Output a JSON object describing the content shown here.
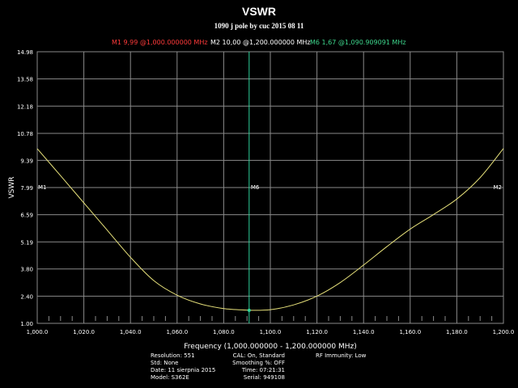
{
  "header": {
    "title": "VSWR",
    "subtitle": "1090 j pole by cuc 2015 08 11"
  },
  "markers": {
    "m1": {
      "text": "M1  9,99 @1,000.000000 MHz",
      "color": "#ff3a3a"
    },
    "m2": {
      "text": "M2  10,00 @1,200.000000 MHz",
      "color": "#ffffff"
    },
    "m6": {
      "text": "M6  1,67 @1,090.909091 MHz",
      "color": "#3dd68c"
    },
    "m1_tag": "M1",
    "m2_tag": "M2",
    "m6_tag": "M6"
  },
  "info": {
    "col1": [
      "Resolution: 551",
      "Std: None",
      "Date: 11 sierpnia 2015",
      "Model: S362E"
    ],
    "col2": [
      "CAL: On, Standard",
      "Smoothing %:  OFF",
      "Time: 07:21:31",
      "Serial: 949108"
    ],
    "col3": [
      "RF Immunity: Low"
    ]
  },
  "colors": {
    "trace": "#e6e07a",
    "grid": "#8a8a8a",
    "m6_line": "#2fd39a",
    "m1_tag": "#ff3a3a",
    "m2_tag": "#ffffff"
  },
  "chart_data": {
    "type": "line",
    "title": "VSWR",
    "subtitle": "1090 j pole by cuc 2015 08 11",
    "xlabel": "Frequency (1,000.000000 - 1,200.000000 MHz)",
    "ylabel": "VSWR",
    "xlim": [
      1000,
      1200
    ],
    "ylim": [
      1.0,
      14.98
    ],
    "grid": true,
    "x_ticks": [
      "1,000.0",
      "1,020.0",
      "1,040.0",
      "1,060.0",
      "1,080.0",
      "1,100.0",
      "1,120.0",
      "1,140.0",
      "1,160.0",
      "1,180.0",
      "1,200.0"
    ],
    "x_tick_values": [
      1000,
      1020,
      1040,
      1060,
      1080,
      1100,
      1120,
      1140,
      1160,
      1180,
      1200
    ],
    "y_ticks": [
      "14.98",
      "13.58",
      "12.18",
      "10.78",
      "9.39",
      "7.99",
      "6.59",
      "5.19",
      "3.80",
      "2.40",
      "1.00"
    ],
    "y_tick_values": [
      14.98,
      13.58,
      12.18,
      10.78,
      9.39,
      7.99,
      6.59,
      5.19,
      3.8,
      2.4,
      1.0
    ],
    "series": [
      {
        "x": [
          1000,
          1010,
          1020,
          1030,
          1040,
          1050,
          1060,
          1070,
          1080,
          1090,
          1090.909,
          1100,
          1110,
          1120,
          1130,
          1140,
          1150,
          1160,
          1170,
          1180,
          1190,
          1200
        ],
        "y": [
          9.99,
          8.6,
          7.2,
          5.8,
          4.4,
          3.2,
          2.45,
          2.0,
          1.76,
          1.68,
          1.67,
          1.7,
          1.95,
          2.4,
          3.1,
          4.0,
          4.95,
          5.85,
          6.6,
          7.4,
          8.5,
          10.0
        ]
      }
    ],
    "markers": [
      {
        "name": "M1",
        "x": 1000.0,
        "y": 9.99
      },
      {
        "name": "M2",
        "x": 1200.0,
        "y": 10.0
      },
      {
        "name": "M6",
        "x": 1090.909091,
        "y": 1.67
      }
    ]
  }
}
